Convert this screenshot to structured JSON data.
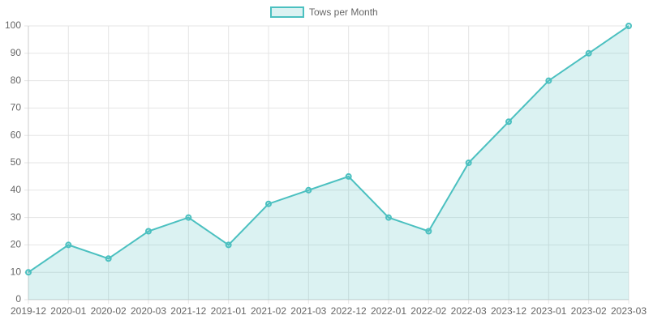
{
  "chart_data": {
    "type": "line",
    "categories": [
      "2019-12",
      "2020-01",
      "2020-02",
      "2020-03",
      "2021-12",
      "2021-01",
      "2021-02",
      "2021-03",
      "2022-12",
      "2022-01",
      "2022-02",
      "2022-03",
      "2023-12",
      "2023-01",
      "2023-02",
      "2023-03"
    ],
    "series": [
      {
        "name": "Tows per Month",
        "color": "#4bc0c0",
        "fill": "rgba(75,192,192,0.2)",
        "values": [
          10,
          20,
          15,
          25,
          30,
          20,
          35,
          40,
          45,
          30,
          25,
          50,
          65,
          80,
          90,
          100
        ]
      }
    ],
    "ylim": [
      0,
      100
    ],
    "yticks": [
      0,
      10,
      20,
      30,
      40,
      50,
      60,
      70,
      80,
      90,
      100
    ],
    "grid": true,
    "legend": "top"
  }
}
